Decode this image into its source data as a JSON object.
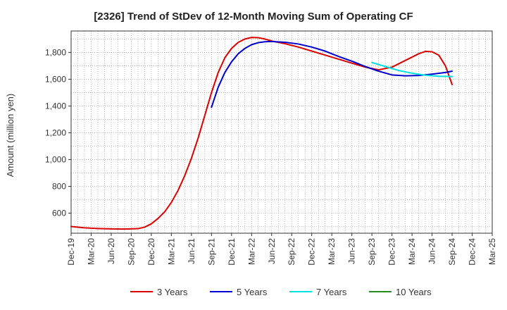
{
  "chart_data": {
    "type": "line",
    "title": "[2326]  Trend of StDev of 12-Month Moving Sum of Operating CF",
    "xlabel": "",
    "ylabel": "Amount (million yen)",
    "ylim": [
      450,
      1960
    ],
    "yticks": [
      600,
      800,
      1000,
      1200,
      1400,
      1600,
      1800
    ],
    "ytick_labels": [
      "600",
      "800",
      "1,000",
      "1,200",
      "1,400",
      "1,600",
      "1,800"
    ],
    "x_range": [
      "2019-12",
      "2025-03"
    ],
    "xtick_labels": [
      "Dec-19",
      "Mar-20",
      "Jun-20",
      "Sep-20",
      "Dec-20",
      "Mar-21",
      "Jun-21",
      "Sep-21",
      "Dec-21",
      "Mar-22",
      "Jun-22",
      "Sep-22",
      "Dec-22",
      "Mar-23",
      "Jun-23",
      "Sep-23",
      "Dec-23",
      "Mar-24",
      "Jun-24",
      "Sep-24",
      "Dec-24",
      "Mar-25"
    ],
    "grid": true,
    "legend_position": "bottom",
    "series": [
      {
        "name": "3 Years",
        "color": "#dd0000",
        "points": [
          [
            "2019-12",
            500
          ],
          [
            "2020-02",
            490
          ],
          [
            "2020-04",
            485
          ],
          [
            "2020-06",
            482
          ],
          [
            "2020-08",
            481
          ],
          [
            "2020-10",
            484
          ],
          [
            "2020-11",
            495
          ],
          [
            "2020-12",
            520
          ],
          [
            "2021-01",
            560
          ],
          [
            "2021-02",
            610
          ],
          [
            "2021-03",
            680
          ],
          [
            "2021-04",
            770
          ],
          [
            "2021-05",
            880
          ],
          [
            "2021-06",
            1010
          ],
          [
            "2021-07",
            1160
          ],
          [
            "2021-08",
            1330
          ],
          [
            "2021-09",
            1500
          ],
          [
            "2021-10",
            1650
          ],
          [
            "2021-11",
            1760
          ],
          [
            "2021-12",
            1830
          ],
          [
            "2022-01",
            1875
          ],
          [
            "2022-02",
            1900
          ],
          [
            "2022-03",
            1912
          ],
          [
            "2022-04",
            1910
          ],
          [
            "2022-05",
            1900
          ],
          [
            "2022-06",
            1885
          ],
          [
            "2022-08",
            1865
          ],
          [
            "2022-10",
            1840
          ],
          [
            "2022-12",
            1810
          ],
          [
            "2023-02",
            1780
          ],
          [
            "2023-04",
            1750
          ],
          [
            "2023-06",
            1720
          ],
          [
            "2023-08",
            1690
          ],
          [
            "2023-10",
            1670
          ],
          [
            "2023-12",
            1690
          ],
          [
            "2024-02",
            1740
          ],
          [
            "2024-04",
            1790
          ],
          [
            "2024-05",
            1808
          ],
          [
            "2024-06",
            1805
          ],
          [
            "2024-07",
            1780
          ],
          [
            "2024-08",
            1700
          ],
          [
            "2024-09",
            1560
          ]
        ]
      },
      {
        "name": "5 Years",
        "color": "#0000cc",
        "points": [
          [
            "2021-09",
            1390
          ],
          [
            "2021-10",
            1540
          ],
          [
            "2021-11",
            1650
          ],
          [
            "2021-12",
            1730
          ],
          [
            "2022-01",
            1790
          ],
          [
            "2022-02",
            1830
          ],
          [
            "2022-03",
            1858
          ],
          [
            "2022-04",
            1873
          ],
          [
            "2022-05",
            1880
          ],
          [
            "2022-06",
            1882
          ],
          [
            "2022-08",
            1876
          ],
          [
            "2022-10",
            1863
          ],
          [
            "2022-12",
            1840
          ],
          [
            "2023-02",
            1810
          ],
          [
            "2023-04",
            1770
          ],
          [
            "2023-06",
            1735
          ],
          [
            "2023-08",
            1695
          ],
          [
            "2023-10",
            1660
          ],
          [
            "2023-12",
            1632
          ],
          [
            "2024-02",
            1625
          ],
          [
            "2024-04",
            1628
          ],
          [
            "2024-06",
            1638
          ],
          [
            "2024-08",
            1650
          ],
          [
            "2024-09",
            1660
          ]
        ]
      },
      {
        "name": "7 Years",
        "color": "#00e0e0",
        "points": [
          [
            "2023-09",
            1725
          ],
          [
            "2023-11",
            1695
          ],
          [
            "2024-01",
            1665
          ],
          [
            "2024-03",
            1645
          ],
          [
            "2024-05",
            1630
          ],
          [
            "2024-07",
            1622
          ],
          [
            "2024-09",
            1620
          ]
        ]
      },
      {
        "name": "10 Years",
        "color": "#228b22",
        "points": []
      }
    ]
  }
}
